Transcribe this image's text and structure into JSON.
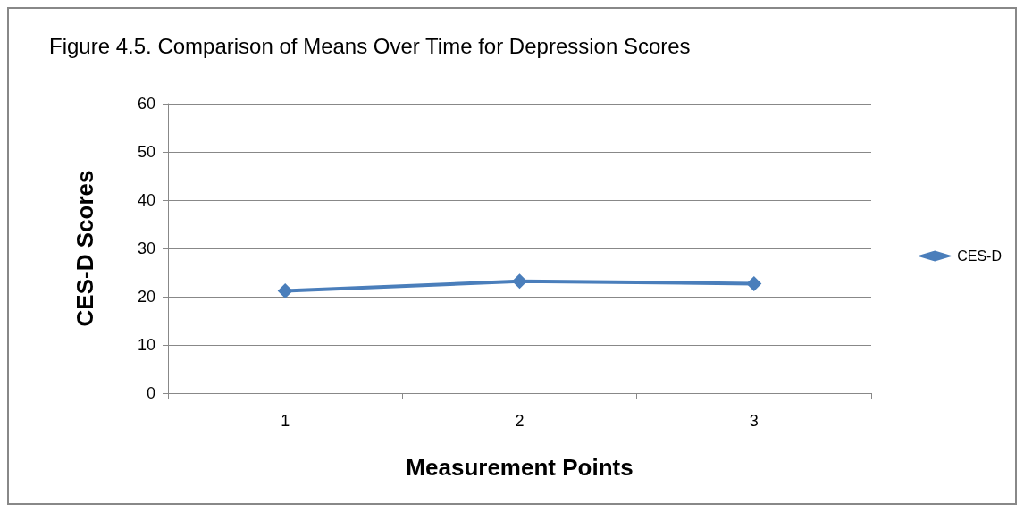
{
  "chart_data": {
    "type": "line",
    "title": "Figure 4.5. Comparison of Means Over Time for Depression Scores",
    "xlabel": "Measurement Points",
    "ylabel": "CES-D Scores",
    "categories": [
      "1",
      "2",
      "3"
    ],
    "series": [
      {
        "name": "CES-D",
        "color": "#4a7ebb",
        "values": [
          21.2,
          23.2,
          22.7
        ]
      }
    ],
    "ylim": [
      0,
      60
    ],
    "yticks": [
      0,
      10,
      20,
      30,
      40,
      50,
      60
    ],
    "grid": "y",
    "legend": "right",
    "marker": "diamond",
    "line_style": "solid"
  }
}
